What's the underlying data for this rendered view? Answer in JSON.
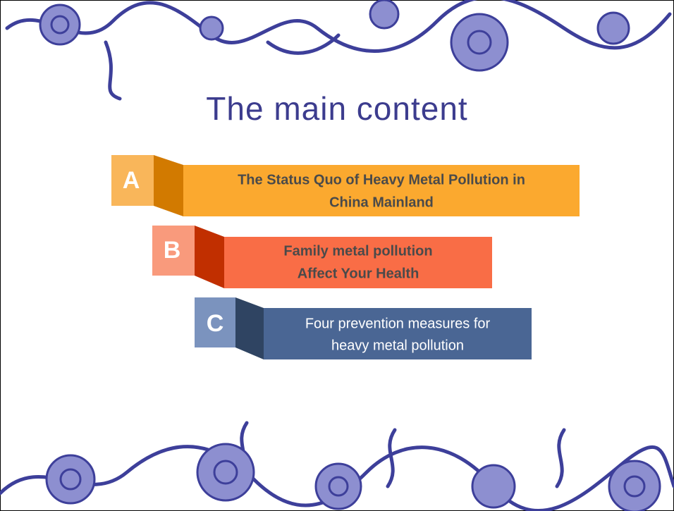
{
  "title": "The main content",
  "items": [
    {
      "letter": "A",
      "lines": [
        "The Status Quo of Heavy Metal Pollution in",
        "China Mainland"
      ]
    },
    {
      "letter": "B",
      "lines": [
        "Family metal pollution",
        "Affect Your Health"
      ]
    },
    {
      "letter": "C",
      "lines": [
        "Four prevention measures for",
        "heavy metal pollution"
      ]
    }
  ]
}
